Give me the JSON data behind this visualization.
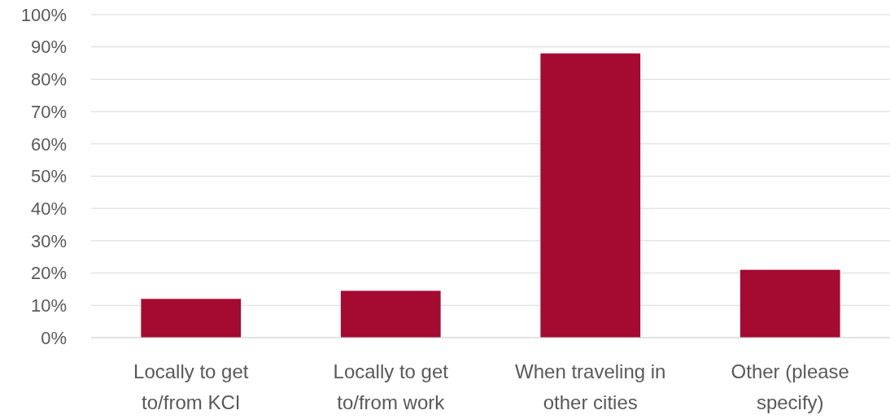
{
  "chart_data": {
    "type": "bar",
    "categories": [
      "Locally to get to/from KCI",
      "Locally to get to/from work",
      "When traveling in other cities",
      "Other (please specify)"
    ],
    "values": [
      12,
      14.5,
      88,
      21
    ],
    "color": "#a50a30",
    "ylim": [
      0,
      100
    ],
    "yticks": [
      {
        "value": 0,
        "label": "0%"
      },
      {
        "value": 10,
        "label": "10%"
      },
      {
        "value": 20,
        "label": "20%"
      },
      {
        "value": 30,
        "label": "30%"
      },
      {
        "value": 40,
        "label": "40%"
      },
      {
        "value": 50,
        "label": "50%"
      },
      {
        "value": 60,
        "label": "60%"
      },
      {
        "value": 70,
        "label": "70%"
      },
      {
        "value": 80,
        "label": "80%"
      },
      {
        "value": 90,
        "label": "90%"
      },
      {
        "value": 100,
        "label": "100%"
      }
    ],
    "grid": "y"
  }
}
